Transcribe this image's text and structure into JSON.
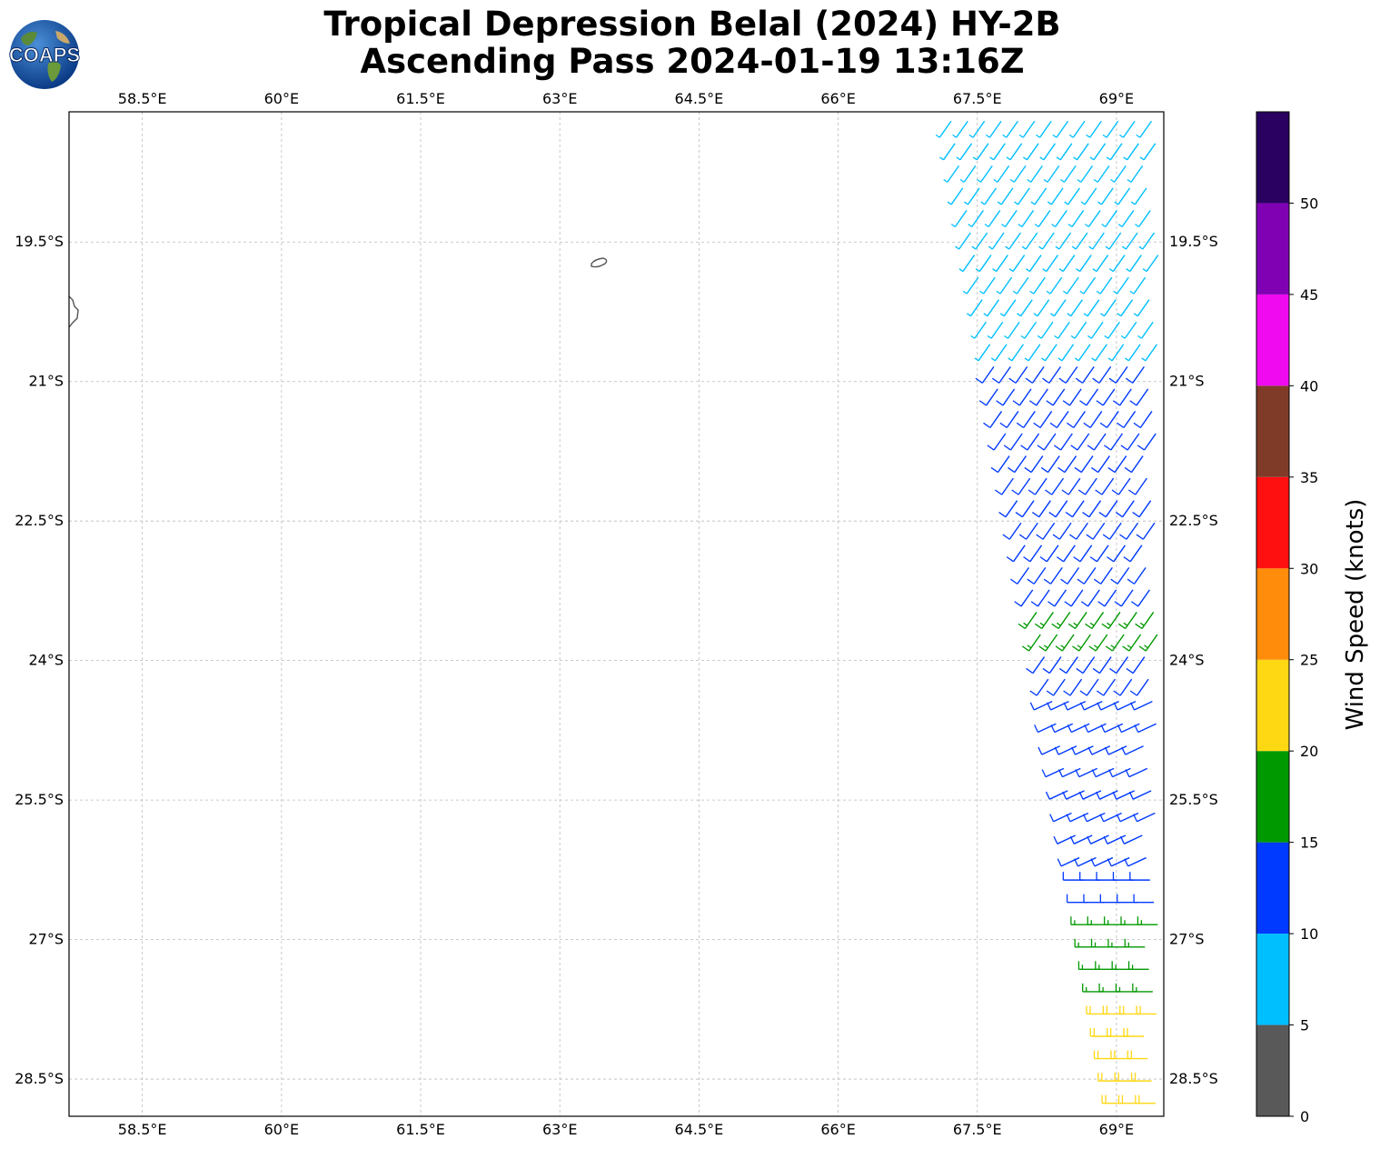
{
  "title": {
    "line1": "Tropical Depression Belal (2024) HY-2B",
    "line2": "Ascending Pass 2024-01-19 13:16Z"
  },
  "logo": {
    "text": "COAPS",
    "icon": "globe-icon"
  },
  "map": {
    "lon_range": [
      57.7,
      69.5
    ],
    "lat_range": [
      -29.0,
      -18.1
    ],
    "lon_ticks": [
      "58.5°E",
      "60°E",
      "61.5°E",
      "63°E",
      "64.5°E",
      "66°E",
      "67.5°E",
      "69°E"
    ],
    "lon_values": [
      58.5,
      60,
      61.5,
      63,
      64.5,
      66,
      67.5,
      69
    ],
    "lat_ticks": [
      "19.5°S",
      "21°S",
      "22.5°S",
      "24°S",
      "25.5°S",
      "27°S",
      "28.5°S"
    ],
    "lat_values": [
      -19.5,
      -21,
      -22.5,
      -24,
      -25.5,
      -27,
      -28.5
    ],
    "gridlines": true,
    "landmasses": [
      "Mauritius (partial, west edge)",
      "Rodrigues"
    ]
  },
  "colorbar": {
    "label": "Wind Speed (knots)",
    "ticks": [
      "0",
      "5",
      "10",
      "15",
      "20",
      "25",
      "30",
      "35",
      "40",
      "45",
      "50"
    ],
    "bins": [
      {
        "from": 0,
        "to": 5,
        "color": "#595959"
      },
      {
        "from": 5,
        "to": 10,
        "color": "#00bfff"
      },
      {
        "from": 10,
        "to": 15,
        "color": "#0039ff"
      },
      {
        "from": 15,
        "to": 20,
        "color": "#009900"
      },
      {
        "from": 20,
        "to": 25,
        "color": "#ffd814"
      },
      {
        "from": 25,
        "to": 30,
        "color": "#ff8c0a"
      },
      {
        "from": 30,
        "to": 35,
        "color": "#ff1010"
      },
      {
        "from": 35,
        "to": 40,
        "color": "#7f3b28"
      },
      {
        "from": 40,
        "to": 45,
        "color": "#ef0af0"
      },
      {
        "from": 45,
        "to": 50,
        "color": "#8000b4"
      },
      {
        "from": 50,
        "to": 55,
        "color": "#2a0061"
      }
    ]
  },
  "chart_data": {
    "type": "wind-barbs",
    "swath": [
      {
        "lat_from": -18.1,
        "lat_to": -20.8,
        "speed_kt": 8,
        "color": "#00bfff"
      },
      {
        "lat_from": -20.8,
        "lat_to": -23.3,
        "speed_kt": 12,
        "color": "#0039ff"
      },
      {
        "lat_from": -23.3,
        "lat_to": -23.9,
        "speed_kt": 17,
        "color": "#009900"
      },
      {
        "lat_from": -23.9,
        "lat_to": -26.6,
        "speed_kt": 13,
        "color": "#0039ff"
      },
      {
        "lat_from": -26.6,
        "lat_to": -27.6,
        "speed_kt": 18,
        "color": "#009900"
      },
      {
        "lat_from": -27.6,
        "lat_to": -29.0,
        "speed_kt": 22,
        "color": "#ffd814"
      }
    ]
  }
}
